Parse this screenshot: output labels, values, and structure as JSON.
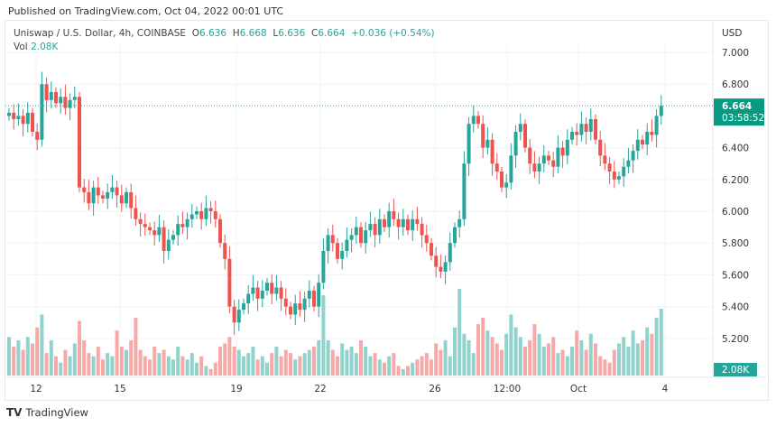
{
  "header": {
    "published": "Published on TradingView.com, Oct 04, 2022 00:01 UTC"
  },
  "legend": {
    "symbol": "Uniswap / U.S. Dollar, 4h, COINBASE",
    "o_label": "O",
    "o": "6.636",
    "h_label": "H",
    "h": "6.668",
    "l_label": "L",
    "l": "6.636",
    "c_label": "C",
    "c": "6.664",
    "change": "+0.036 (+0.54%)",
    "vol_label": "Vol",
    "vol": "2.08K"
  },
  "footer": {
    "brand": "TradingView"
  },
  "chart_data": {
    "type": "candlestick",
    "currency": "USD",
    "y_ticks": [
      "7.000",
      "6.800",
      "6.400",
      "6.200",
      "6.000",
      "5.800",
      "5.600",
      "5.400",
      "5.200"
    ],
    "ylim": [
      5.2,
      7.0
    ],
    "x_ticks": [
      "12",
      "15",
      "19",
      "22",
      "26",
      "12:00",
      "Oct",
      "4"
    ],
    "last_price": "6.664",
    "countdown": "03:58:52",
    "last_volume": "2.08K",
    "colors": {
      "up": "#26a69a",
      "down": "#ef5350",
      "vol_up": "#90d3cc",
      "vol_down": "#f7a9a7"
    },
    "first_open": 6.6,
    "closes": [
      6.62,
      6.58,
      6.6,
      6.55,
      6.62,
      6.5,
      6.45,
      6.8,
      6.7,
      6.75,
      6.68,
      6.72,
      6.65,
      6.7,
      6.72,
      6.15,
      6.12,
      6.05,
      6.15,
      6.1,
      6.08,
      6.12,
      6.15,
      6.1,
      6.05,
      6.12,
      6.02,
      5.95,
      5.92,
      5.9,
      5.88,
      5.85,
      5.9,
      5.75,
      5.82,
      5.85,
      5.92,
      5.9,
      5.95,
      5.98,
      6.0,
      5.95,
      6.02,
      6.0,
      5.95,
      5.8,
      5.7,
      5.4,
      5.3,
      5.38,
      5.42,
      5.48,
      5.52,
      5.45,
      5.5,
      5.55,
      5.48,
      5.52,
      5.45,
      5.4,
      5.35,
      5.42,
      5.38,
      5.45,
      5.5,
      5.4,
      5.55,
      5.75,
      5.85,
      5.8,
      5.7,
      5.75,
      5.82,
      5.85,
      5.9,
      5.8,
      5.88,
      5.92,
      5.85,
      5.95,
      5.9,
      6.0,
      5.95,
      5.9,
      5.95,
      5.88,
      5.95,
      5.92,
      5.85,
      5.8,
      5.72,
      5.65,
      5.62,
      5.68,
      5.8,
      5.9,
      5.95,
      6.3,
      6.55,
      6.6,
      6.55,
      6.4,
      6.45,
      6.3,
      6.25,
      6.15,
      6.18,
      6.35,
      6.5,
      6.55,
      6.4,
      6.3,
      6.25,
      6.3,
      6.35,
      6.32,
      6.28,
      6.4,
      6.35,
      6.45,
      6.5,
      6.48,
      6.55,
      6.5,
      6.58,
      6.45,
      6.35,
      6.3,
      6.25,
      6.2,
      6.22,
      6.28,
      6.32,
      6.38,
      6.45,
      6.42,
      6.5,
      6.48,
      6.6,
      6.664
    ],
    "volumes_k": [
      1.2,
      0.9,
      1.1,
      0.8,
      1.2,
      1.0,
      1.5,
      1.9,
      0.7,
      1.1,
      0.6,
      0.4,
      0.8,
      0.6,
      1.0,
      1.7,
      1.1,
      0.7,
      0.6,
      0.9,
      0.5,
      0.7,
      0.6,
      1.4,
      0.9,
      0.8,
      1.1,
      1.8,
      0.8,
      0.6,
      0.5,
      0.9,
      0.7,
      0.8,
      0.6,
      0.5,
      0.9,
      0.6,
      0.5,
      0.7,
      0.4,
      0.6,
      0.3,
      0.2,
      0.4,
      0.9,
      1.0,
      1.2,
      0.9,
      0.8,
      0.6,
      0.7,
      0.9,
      0.5,
      0.6,
      0.4,
      0.7,
      0.9,
      0.6,
      0.8,
      0.7,
      0.5,
      0.6,
      0.7,
      0.8,
      0.9,
      1.1,
      2.5,
      1.1,
      0.8,
      0.6,
      1.0,
      0.8,
      0.9,
      0.7,
      1.1,
      0.9,
      0.6,
      0.7,
      0.5,
      0.4,
      0.6,
      0.7,
      0.3,
      0.2,
      0.3,
      0.4,
      0.5,
      0.6,
      0.7,
      0.5,
      1.0,
      0.8,
      1.1,
      0.6,
      1.5,
      2.7,
      1.3,
      1.1,
      0.7,
      1.6,
      1.8,
      1.4,
      1.2,
      1.0,
      0.8,
      1.3,
      1.9,
      1.5,
      1.2,
      0.9,
      1.1,
      1.6,
      1.3,
      0.9,
      1.0,
      1.2,
      0.7,
      0.8,
      0.6,
      0.9,
      1.4,
      1.1,
      0.8,
      1.3,
      1.0,
      0.6,
      0.5,
      0.4,
      0.8,
      1.0,
      1.2,
      0.9,
      1.4,
      1.0,
      1.1,
      1.5,
      1.3,
      1.8,
      2.08
    ]
  }
}
